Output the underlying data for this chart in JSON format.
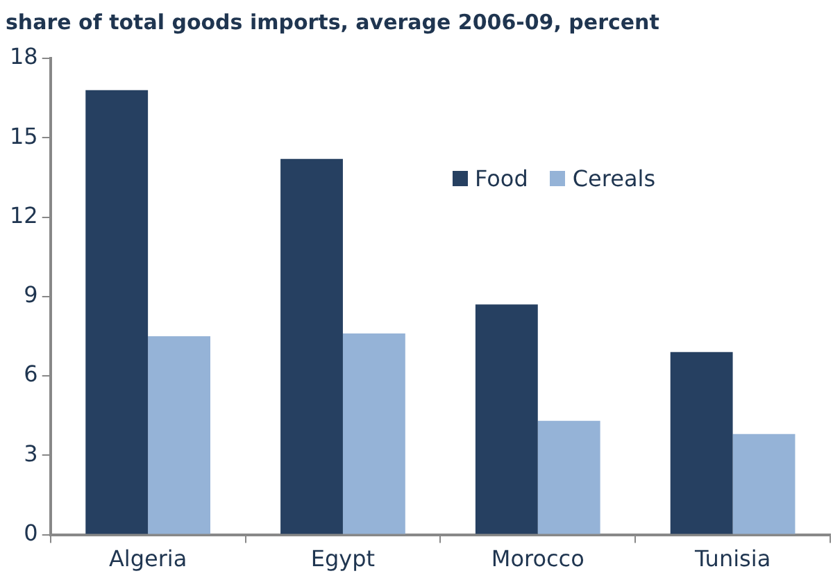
{
  "chart_data": {
    "type": "bar",
    "title": "share of total goods imports, average 2006-09, percent",
    "categories": [
      "Algeria",
      "Egypt",
      "Morocco",
      "Tunisia"
    ],
    "series": [
      {
        "name": "Food",
        "color": "#264061",
        "values": [
          16.8,
          14.2,
          8.7,
          6.9
        ]
      },
      {
        "name": "Cereals",
        "color": "#95b3d7",
        "values": [
          7.5,
          7.6,
          4.3,
          3.8
        ]
      }
    ],
    "ylim": [
      0,
      18
    ],
    "yticks": [
      0,
      3,
      6,
      9,
      12,
      15,
      18
    ],
    "grid": false,
    "legend": "top right"
  }
}
